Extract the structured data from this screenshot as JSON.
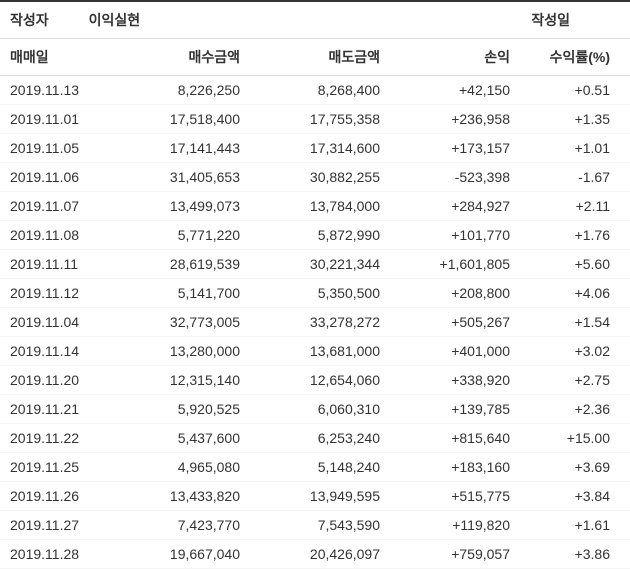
{
  "header": {
    "author_label": "작성자",
    "author_value": "이익실현",
    "date_label": "작성일"
  },
  "columns": {
    "date": "매매일",
    "buy": "매수금액",
    "sell": "매도금액",
    "profit": "손익",
    "rate": "수익률(%)"
  },
  "rows": [
    {
      "date": "2019.11.13",
      "buy": "8,226,250",
      "sell": "8,268,400",
      "profit": "+42,150",
      "rate": "+0.51",
      "sign": "positive"
    },
    {
      "date": "2019.11.01",
      "buy": "17,518,400",
      "sell": "17,755,358",
      "profit": "+236,958",
      "rate": "+1.35",
      "sign": "positive"
    },
    {
      "date": "2019.11.05",
      "buy": "17,141,443",
      "sell": "17,314,600",
      "profit": "+173,157",
      "rate": "+1.01",
      "sign": "positive"
    },
    {
      "date": "2019.11.06",
      "buy": "31,405,653",
      "sell": "30,882,255",
      "profit": "-523,398",
      "rate": "-1.67",
      "sign": "negative"
    },
    {
      "date": "2019.11.07",
      "buy": "13,499,073",
      "sell": "13,784,000",
      "profit": "+284,927",
      "rate": "+2.11",
      "sign": "positive"
    },
    {
      "date": "2019.11.08",
      "buy": "5,771,220",
      "sell": "5,872,990",
      "profit": "+101,770",
      "rate": "+1.76",
      "sign": "positive"
    },
    {
      "date": "2019.11.11",
      "buy": "28,619,539",
      "sell": "30,221,344",
      "profit": "+1,601,805",
      "rate": "+5.60",
      "sign": "positive"
    },
    {
      "date": "2019.11.12",
      "buy": "5,141,700",
      "sell": "5,350,500",
      "profit": "+208,800",
      "rate": "+4.06",
      "sign": "positive"
    },
    {
      "date": "2019.11.04",
      "buy": "32,773,005",
      "sell": "33,278,272",
      "profit": "+505,267",
      "rate": "+1.54",
      "sign": "positive"
    },
    {
      "date": "2019.11.14",
      "buy": "13,280,000",
      "sell": "13,681,000",
      "profit": "+401,000",
      "rate": "+3.02",
      "sign": "positive"
    },
    {
      "date": "2019.11.20",
      "buy": "12,315,140",
      "sell": "12,654,060",
      "profit": "+338,920",
      "rate": "+2.75",
      "sign": "positive"
    },
    {
      "date": "2019.11.21",
      "buy": "5,920,525",
      "sell": "6,060,310",
      "profit": "+139,785",
      "rate": "+2.36",
      "sign": "positive"
    },
    {
      "date": "2019.11.22",
      "buy": "5,437,600",
      "sell": "6,253,240",
      "profit": "+815,640",
      "rate": "+15.00",
      "sign": "positive"
    },
    {
      "date": "2019.11.25",
      "buy": "4,965,080",
      "sell": "5,148,240",
      "profit": "+183,160",
      "rate": "+3.69",
      "sign": "positive"
    },
    {
      "date": "2019.11.26",
      "buy": "13,433,820",
      "sell": "13,949,595",
      "profit": "+515,775",
      "rate": "+3.84",
      "sign": "positive"
    },
    {
      "date": "2019.11.27",
      "buy": "7,423,770",
      "sell": "7,543,590",
      "profit": "+119,820",
      "rate": "+1.61",
      "sign": "positive"
    },
    {
      "date": "2019.11.28",
      "buy": "19,667,040",
      "sell": "20,426,097",
      "profit": "+759,057",
      "rate": "+3.86",
      "sign": "positive"
    }
  ],
  "styling": {
    "positive_color": "#e74c3c",
    "negative_color": "#3498db",
    "text_color": "#333333",
    "border_color": "#dddddd",
    "row_border_color": "#f5f5f5",
    "background_color": "#ffffff",
    "font_size": 14
  }
}
